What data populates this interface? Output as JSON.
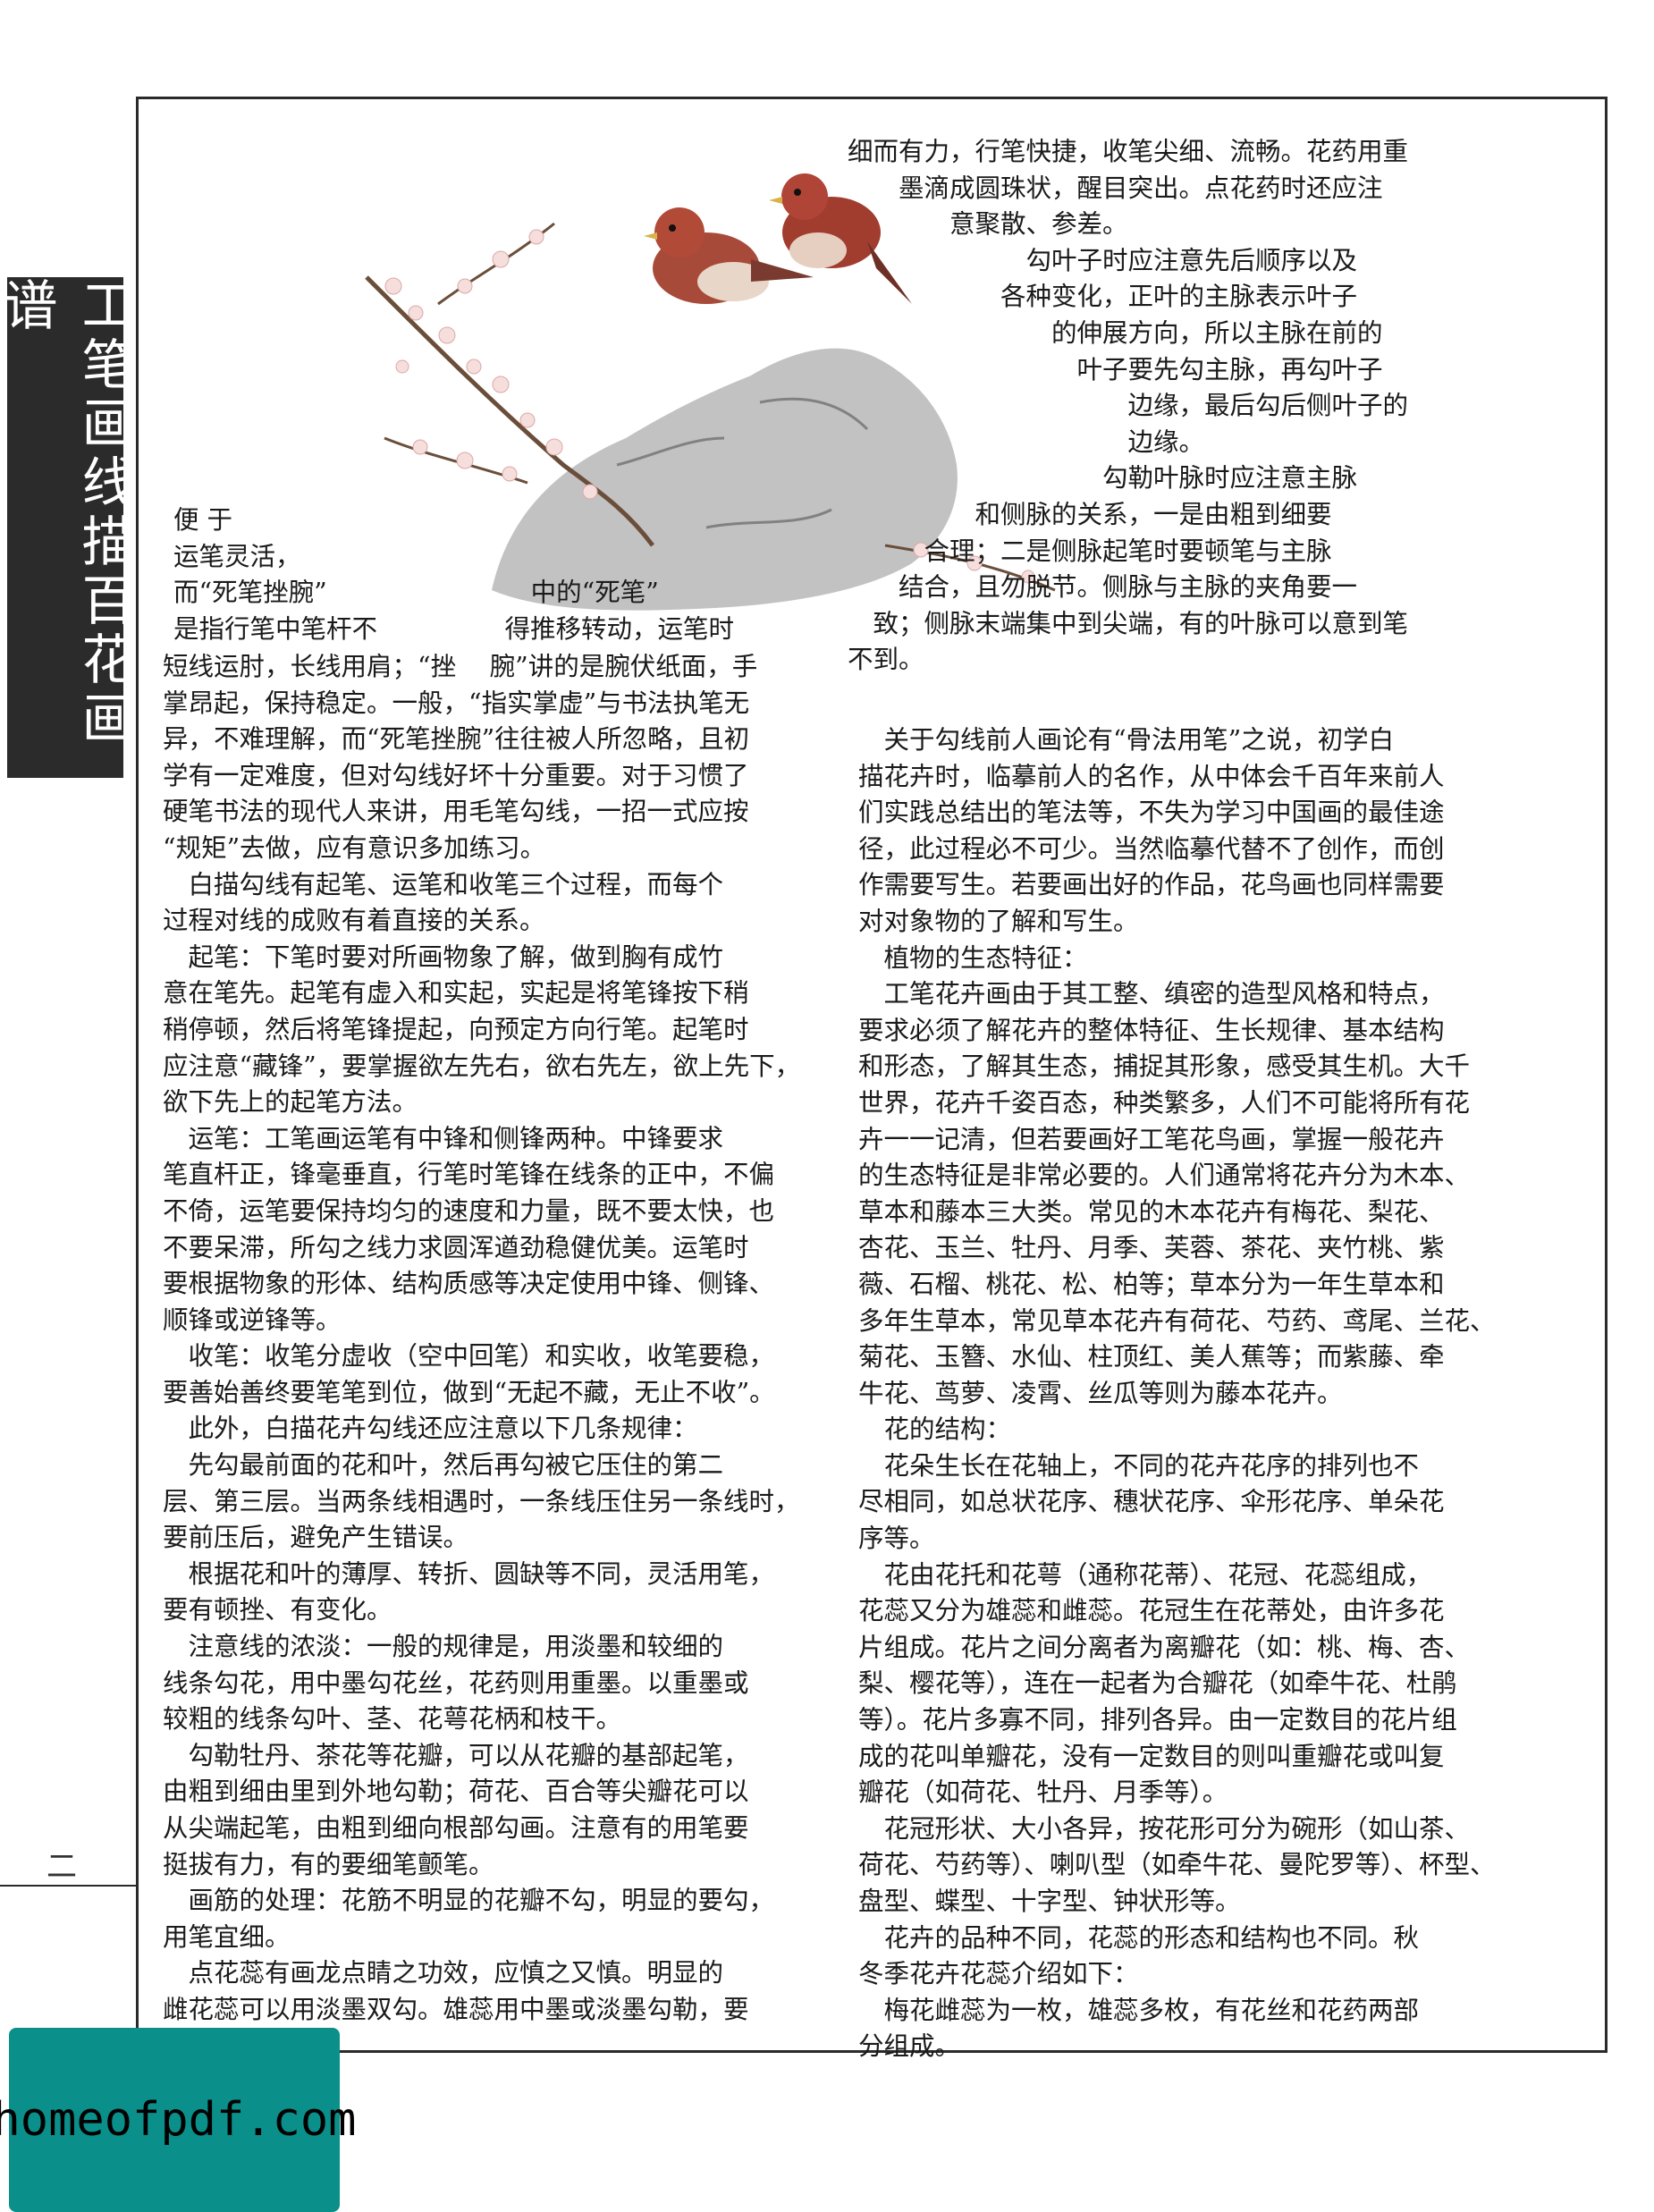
{
  "sidebar": {
    "title": "工笔画线描百花画谱"
  },
  "page_number": "二",
  "watermark": "homeofpdf.com",
  "painting": {
    "subject": "plum-blossom-birds-rock"
  },
  "left_top_lines": [
    "便 于",
    "运笔灵活，",
    "而“死笔挫腕”　　　　　　　　中的“死笔”",
    "是指行笔中笔杆不　　　　　得推移转动，运笔时"
  ],
  "left_lines": [
    "短线运肘，长线用肩；“挫　 腕”讲的是腕伏纸面，手",
    "掌昂起，保持稳定。一般，“指实掌虚”与书法执笔无",
    "异，不难理解，而“死笔挫腕”往往被人所忽略，且初",
    "学有一定难度，但对勾线好坏十分重要。对于习惯了",
    "硬笔书法的现代人来讲，用毛笔勾线，一招一式应按",
    "“规矩”去做，应有意识多加练习。",
    "　白描勾线有起笔、运笔和收笔三个过程，而每个",
    "过程对线的成败有着直接的关系。",
    "　起笔：下笔时要对所画物象了解，做到胸有成竹",
    "意在笔先。起笔有虚入和实起，实起是将笔锋按下稍",
    "稍停顿，然后将笔锋提起，向预定方向行笔。起笔时",
    "应注意“藏锋”，要掌握欲左先右，欲右先左，欲上先下，",
    "欲下先上的起笔方法。",
    "　运笔：工笔画运笔有中锋和侧锋两种。中锋要求",
    "笔直杆正，锋毫垂直，行笔时笔锋在线条的正中，不偏",
    "不倚，运笔要保持均匀的速度和力量，既不要太快，也",
    "不要呆滞，所勾之线力求圆浑遒劲稳健优美。运笔时",
    "要根据物象的形体、结构质感等决定使用中锋、侧锋、",
    "顺锋或逆锋等。",
    "　收笔：收笔分虚收（空中回笔）和实收，收笔要稳，",
    "要善始善终要笔笔到位，做到“无起不藏，无止不收”。",
    "　此外，白描花卉勾线还应注意以下几条规律：",
    "　先勾最前面的花和叶，然后再勾被它压住的第二",
    "层、第三层。当两条线相遇时，一条线压住另一条线时，",
    "要前压后，避免产生错误。",
    "　根据花和叶的薄厚、转折、圆缺等不同，灵活用笔，",
    "要有顿挫、有变化。",
    "　注意线的浓淡：一般的规律是，用淡墨和较细的",
    "线条勾花，用中墨勾花丝，花药则用重墨。以重墨或",
    "较粗的线条勾叶、茎、花萼花柄和枝干。",
    "　勾勒牡丹、茶花等花瓣，可以从花瓣的基部起笔，",
    "由粗到细由里到外地勾勒；荷花、百合等尖瓣花可以",
    "从尖端起笔，由粗到细向根部勾画。注意有的用笔要",
    "挺拔有力，有的要细笔颤笔。",
    "　画筋的处理：花筋不明显的花瓣不勾，明显的要勾，",
    "用笔宜细。",
    "　点花蕊有画龙点睛之功效，应慎之又慎。明显的",
    "雌花蕊可以用淡墨双勾。雄蕊用中墨或淡墨勾勒，要"
  ],
  "right_top_lines": [
    "细而有力，行笔快捷，收笔尖细、流畅。花药用重",
    "　　墨滴成圆珠状，醒目突出。点花药时还应注",
    "　　　　意聚散、参差。",
    "　　　　　　　勾叶子时应注意先后顺序以及",
    "　　　　　　各种变化，正叶的主脉表示叶子",
    "　　　　　　　　的伸展方向，所以主脉在前的",
    "　　　　　　　　　叶子要先勾主脉，再勾叶子",
    "　　　　　　　　　　　边缘，最后勾后侧叶子的",
    "　　　　　　　　　　　边缘。",
    "　　　　　　　　　　勾勒叶脉时应注意主脉",
    "　　　　　和侧脉的关系，一是由粗到细要",
    "　　　合理；二是侧脉起笔时要顿笔与主脉",
    "　　结合，且勿脱节。侧脉与主脉的夹角要一",
    "　致；侧脉末端集中到尖端，有的叶脉可以意到笔",
    "不到。"
  ],
  "right_lines": [
    "　关于勾线前人画论有“骨法用笔”之说，初学白",
    "描花卉时，临摹前人的名作，从中体会千百年来前人",
    "们实践总结出的笔法等，不失为学习中国画的最佳途",
    "径，此过程必不可少。当然临摹代替不了创作，而创",
    "作需要写生。若要画出好的作品，花鸟画也同样需要",
    "对对象物的了解和写生。",
    "　植物的生态特征：",
    "　工笔花卉画由于其工整、缜密的造型风格和特点，",
    "要求必须了解花卉的整体特征、生长规律、基本结构",
    "和形态，了解其生态，捕捉其形象，感受其生机。大千",
    "世界，花卉千姿百态，种类繁多，人们不可能将所有花",
    "卉一一记清，但若要画好工笔花鸟画，掌握一般花卉",
    "的生态特征是非常必要的。人们通常将花卉分为木本、",
    "草本和藤本三大类。常见的木本花卉有梅花、梨花、",
    "杏花、玉兰、牡丹、月季、芙蓉、茶花、夹竹桃、紫",
    "薇、石榴、桃花、松、柏等；草本分为一年生草本和",
    "多年生草本，常见草本花卉有荷花、芍药、鸢尾、兰花、",
    "菊花、玉簪、水仙、柱顶红、美人蕉等；而紫藤、牵",
    "牛花、茑萝、凌霄、丝瓜等则为藤本花卉。",
    "　花的结构：",
    "　花朵生长在花轴上，不同的花卉花序的排列也不",
    "尽相同，如总状花序、穗状花序、伞形花序、单朵花",
    "序等。",
    "　花由花托和花萼（通称花蒂）、花冠、花蕊组成，",
    "花蕊又分为雄蕊和雌蕊。花冠生在花蒂处，由许多花",
    "片组成。花片之间分离者为离瓣花（如：桃、梅、杏、",
    "梨、樱花等），连在一起者为合瓣花（如牵牛花、杜鹃",
    "等）。花片多寡不同，排列各异。由一定数目的花片组",
    "成的花叫单瓣花，没有一定数目的则叫重瓣花或叫复",
    "瓣花（如荷花、牡丹、月季等）。",
    "　花冠形状、大小各异，按花形可分为碗形（如山茶、",
    "荷花、芍药等）、喇叭型（如牵牛花、曼陀罗等）、杯型、",
    "盘型、蝶型、十字型、钟状形等。",
    "　花卉的品种不同，花蕊的形态和结构也不同。秋",
    "冬季花卉花蕊介绍如下：",
    "　梅花雌蕊为一枚，雄蕊多枚，有花丝和花药两部",
    "分组成。"
  ]
}
